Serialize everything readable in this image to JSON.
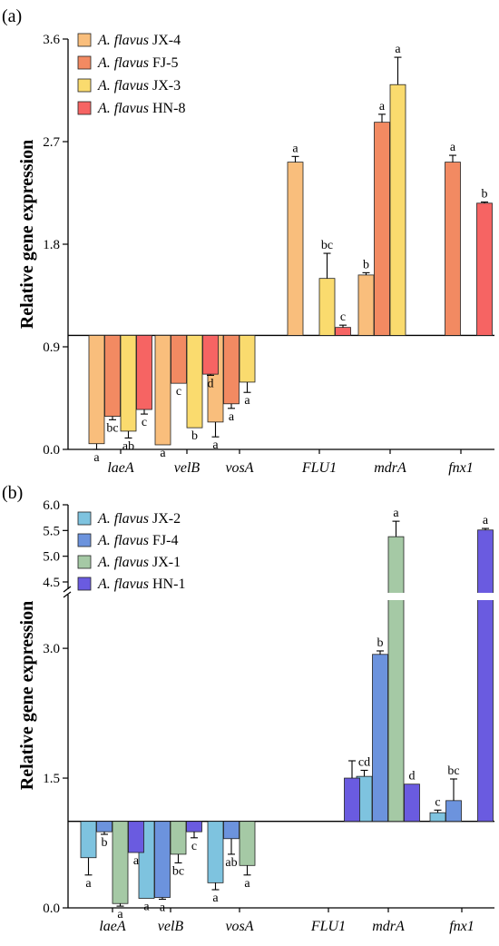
{
  "chart_data": [
    {
      "panel": "(a)",
      "type": "bar",
      "ylabel": "Relative gene expression",
      "ylim": [
        0,
        3.6
      ],
      "yticks": [
        "0.0",
        "0.9",
        "1.8",
        "2.7",
        "3.6"
      ],
      "baseline": 1.0,
      "categories": [
        "laeA",
        "velB",
        "vosA",
        "FLU1",
        "mdrA",
        "fnx1"
      ],
      "series": [
        {
          "name_italic": "A. flavus",
          "name_strain": "JX-4",
          "color": "#F9BE7C",
          "values": [
            0.05,
            0.04,
            0.24,
            2.52,
            1.53,
            null
          ],
          "errors": [
            0.05,
            0.0,
            0.13,
            0.05,
            0.02,
            null
          ],
          "letters": [
            "a",
            "a",
            "a",
            "a",
            "b",
            ""
          ]
        },
        {
          "name_italic": "A. flavus",
          "name_strain": "FJ-5",
          "color": "#F28A62",
          "values": [
            0.29,
            0.58,
            0.4,
            null,
            2.87,
            2.52
          ],
          "errors": [
            0.03,
            0.0,
            0.04,
            null,
            0.07,
            0.06
          ],
          "letters": [
            "bc",
            "c",
            "a",
            "",
            "a",
            "a"
          ]
        },
        {
          "name_italic": "A. flavus",
          "name_strain": "JX-3",
          "color": "#FADB6E",
          "values": [
            0.16,
            0.19,
            0.59,
            1.5,
            3.2,
            null
          ],
          "errors": [
            0.06,
            0.0,
            0.09,
            0.22,
            0.24,
            null
          ],
          "letters": [
            "ab",
            "b",
            "a",
            "bc",
            "a",
            ""
          ]
        },
        {
          "name_italic": "A. flavus",
          "name_strain": "HN-8",
          "color": "#F66463",
          "values": [
            0.35,
            0.66,
            null,
            1.07,
            null,
            2.16
          ],
          "errors": [
            0.04,
            0.01,
            null,
            0.02,
            null,
            0.01
          ],
          "letters": [
            "c",
            "d",
            "",
            "c",
            "",
            "b"
          ]
        }
      ]
    },
    {
      "panel": "(b)",
      "type": "bar",
      "ylabel": "Relative gene expression",
      "ylim": [
        0,
        6.0
      ],
      "axis_break": [
        3.4,
        4.5
      ],
      "yticks": [
        "0.0",
        "1.5",
        "3.0",
        "4.5",
        "5.0",
        "5.5",
        "6.0"
      ],
      "baseline": 1.0,
      "categories": [
        "laeA",
        "velB",
        "vosA",
        "FLU1",
        "mdrA",
        "fnx1"
      ],
      "series": [
        {
          "name_italic": "A. flavus",
          "name_strain": "JX-2",
          "color": "#7EC3DF",
          "values": [
            0.58,
            0.11,
            0.29,
            null,
            1.52,
            1.1
          ],
          "errors": [
            0.2,
            0.0,
            0.08,
            null,
            0.07,
            0.03
          ],
          "letters": [
            "a",
            "a",
            "a",
            "",
            "cd",
            "c"
          ]
        },
        {
          "name_italic": "A. flavus",
          "name_strain": "FJ-4",
          "color": "#6C93DD",
          "values": [
            0.88,
            0.12,
            0.8,
            null,
            2.93,
            1.24
          ],
          "errors": [
            0.03,
            0.02,
            0.18,
            null,
            0.04,
            0.25
          ],
          "letters": [
            "b",
            "a",
            "ab",
            "",
            "b",
            "bc"
          ]
        },
        {
          "name_italic": "A. flavus",
          "name_strain": "JX-1",
          "color": "#A5C9A5",
          "values": [
            0.05,
            0.62,
            0.49,
            null,
            5.38,
            null
          ],
          "errors": [
            0.03,
            0.1,
            0.11,
            null,
            0.3,
            null
          ],
          "letters": [
            "a",
            "bc",
            "a",
            "",
            "a",
            ""
          ]
        },
        {
          "name_italic": "A. flavus",
          "name_strain": "HN-1",
          "color": "#6A5BE0",
          "values": [
            0.64,
            0.88,
            null,
            1.5,
            1.43,
            5.51
          ],
          "errors": [
            0.0,
            0.07,
            null,
            0.2,
            0.0,
            0.03
          ],
          "letters": [
            "a",
            "c",
            "",
            "",
            "d",
            "a"
          ]
        }
      ]
    }
  ]
}
